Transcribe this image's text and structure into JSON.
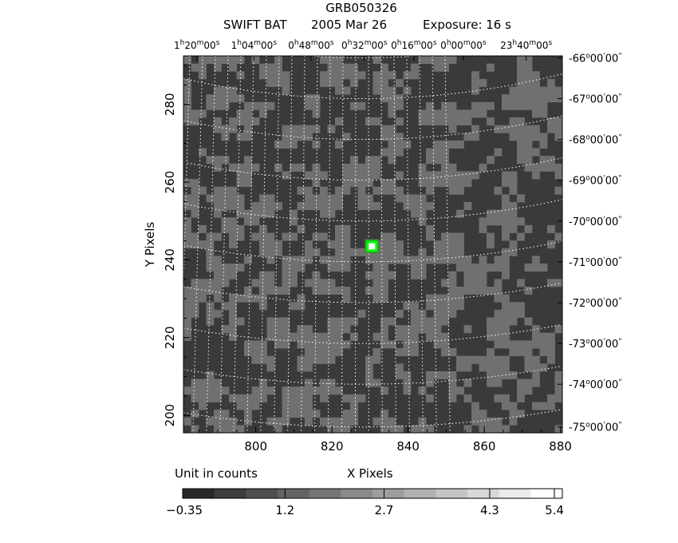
{
  "title": "GRB050326",
  "subtitle_instrument": "SWIFT BAT",
  "subtitle_date": "2005 Mar 26",
  "subtitle_exposure": "Exposure: 16 s",
  "colorbar_unit_label": "Unit in counts",
  "colors": {
    "background": "#ffffff",
    "dark_pixel": "#3a3a3a",
    "light_pixel": "#707070",
    "source": "#00ff00",
    "grid": "#ffffff"
  },
  "chart_data": {
    "type": "heatmap",
    "title": "GRB050326",
    "xlabel": "X Pixels",
    "ylabel": "Y Pixels",
    "xlim": [
      781,
      880.5
    ],
    "ylim": [
      195.5,
      292.5
    ],
    "x_ticks": [
      800,
      820,
      840,
      860,
      880
    ],
    "y_ticks": [
      200,
      220,
      240,
      260,
      280
    ],
    "ra_labels": [
      {
        "h": "1",
        "m": "20",
        "s": "00",
        "x": 784.5
      },
      {
        "h": "1",
        "m": "04",
        "s": "00",
        "x": 799.5
      },
      {
        "h": "0",
        "m": "48",
        "s": "00",
        "x": 814.5
      },
      {
        "h": "0",
        "m": "32",
        "s": "00",
        "x": 828.5
      },
      {
        "h": "0",
        "m": "16",
        "s": "00",
        "x": 841.5
      },
      {
        "h": "0",
        "m": "00",
        "s": "00",
        "x": 854.5
      },
      {
        "h": "23",
        "m": "40",
        "s": "00",
        "x": 871
      }
    ],
    "dec_labels": [
      {
        "deg": "-66",
        "y": 292.0
      },
      {
        "deg": "-67",
        "y": 281.5
      },
      {
        "deg": "-68",
        "y": 271.0
      },
      {
        "deg": "-69",
        "y": 260.5
      },
      {
        "deg": "-70",
        "y": 250.0
      },
      {
        "deg": "-71",
        "y": 239.5
      },
      {
        "deg": "-72",
        "y": 229.0
      },
      {
        "deg": "-73",
        "y": 218.5
      },
      {
        "deg": "-74",
        "y": 208.0
      },
      {
        "deg": "-75",
        "y": 197.0
      }
    ],
    "source": {
      "x": 830.5,
      "y": 243.5,
      "label": "bright source"
    },
    "pixel_levels": [
      -0.35,
      1.2
    ],
    "colorbar": {
      "ticks": [
        -0.35,
        1.2,
        2.7,
        4.3,
        5.4
      ],
      "tick_labels": [
        "−0.35",
        "1.2",
        "2.7",
        "4.3",
        "5.4"
      ],
      "range": [
        -0.35,
        5.4
      ],
      "n_steps": 12
    }
  }
}
